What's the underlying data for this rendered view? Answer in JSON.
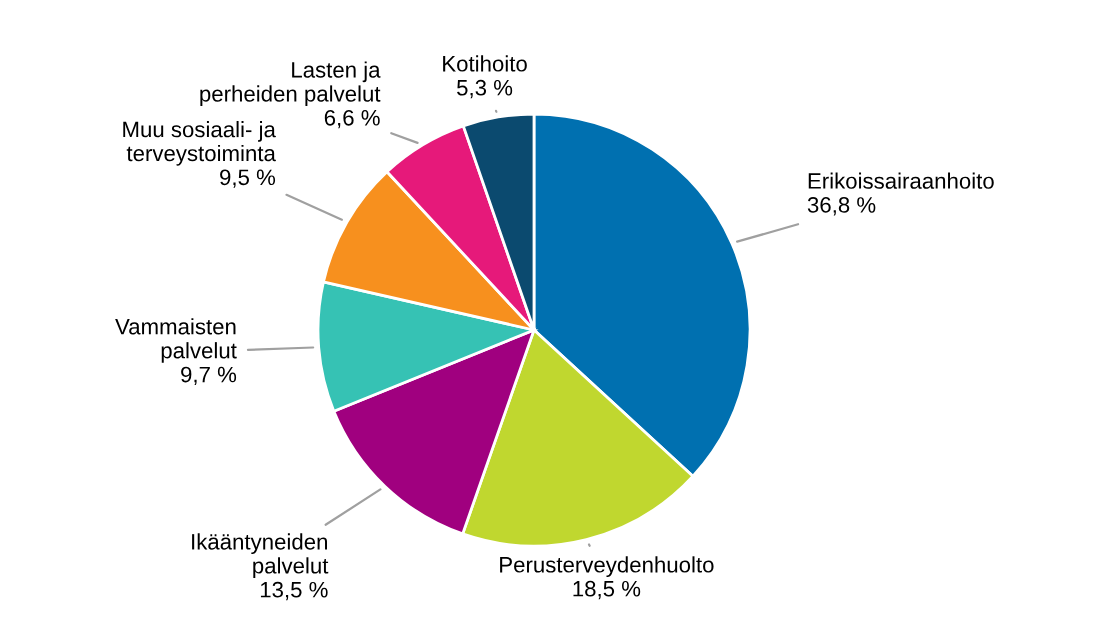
{
  "chart_data": {
    "type": "pie",
    "categories": [
      "Erikoissairaanhoito",
      "Perusterveydenhuolto",
      "Ikääntyneiden\npalvelut",
      "Vammaisten\npalvelut",
      "Muu sosiaali- ja\nterveystoiminta",
      "Lasten ja\nperheiden palvelut",
      "Kotihoito"
    ],
    "values": [
      36.8,
      18.5,
      13.5,
      9.7,
      9.5,
      6.6,
      5.3
    ],
    "value_labels": [
      "36,8 %",
      "18,5 %",
      "13,5 %",
      "9,7 %",
      "9,5 %",
      "6,6 %",
      "5,3 %"
    ],
    "colors": [
      "#0070b0",
      "#c0d72f",
      "#a0007f",
      "#36c2b4",
      "#f7901e",
      "#e6197a",
      "#0b4a6f"
    ],
    "legend": false
  }
}
